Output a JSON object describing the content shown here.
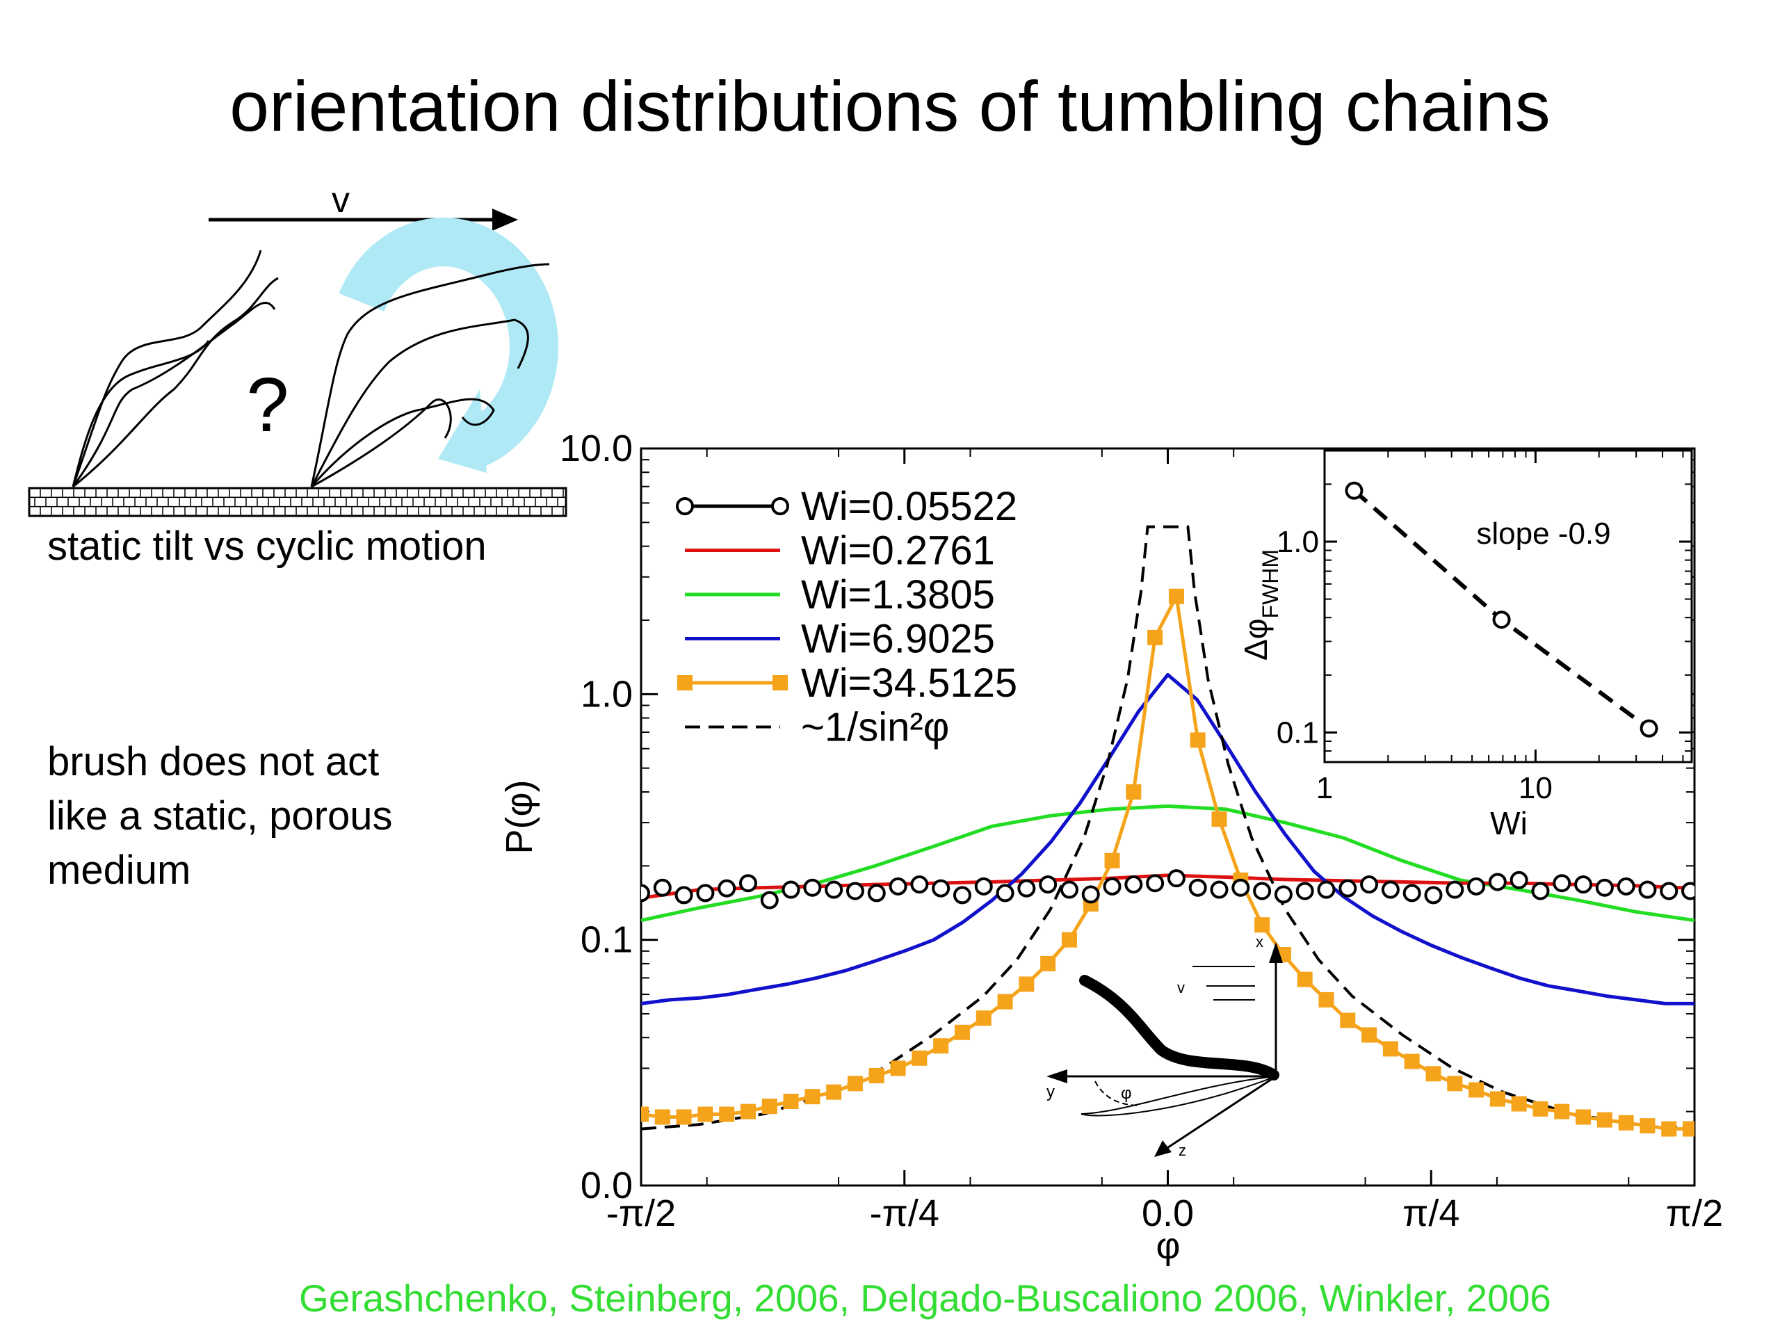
{
  "slide": {
    "title": "orientation distributions of tumbling chains",
    "sketch_arrow_label": "v",
    "sketch_question": "?",
    "sketch_caption": "static tilt vs cyclic motion",
    "note_lines": [
      "brush does not act",
      "like a static, porous",
      "medium"
    ],
    "citation": "Gerashchenko, Steinberg, 2006,  Delgado-Buscaliono 2006, Winkler, 2006"
  },
  "colors": {
    "black": "#000000",
    "red": "#dd1111",
    "green": "#22dd22",
    "blue": "#1111cc",
    "orange": "#f5a31a",
    "cyan_arrow": "#aee9f5",
    "citation_green": "#33dd33"
  },
  "chart_data": [
    {
      "type": "line",
      "title": "",
      "xlabel": "φ",
      "ylabel": "P(φ)",
      "xlim": [
        -1.5708,
        1.5708
      ],
      "ylim": [
        0.0,
        10.0
      ],
      "y_scale": "log",
      "x_ticks": [
        {
          "value": -1.5708,
          "label": "-π/2"
        },
        {
          "value": -0.7854,
          "label": "-π/4"
        },
        {
          "value": 0.0,
          "label": "0.0"
        },
        {
          "value": 0.7854,
          "label": "π/4"
        },
        {
          "value": 1.5708,
          "label": "π/2"
        }
      ],
      "y_ticks": [
        {
          "value": 0.01,
          "label": "0.0"
        },
        {
          "value": 0.1,
          "label": "0.1"
        },
        {
          "value": 1.0,
          "label": "1.0"
        },
        {
          "value": 10.0,
          "label": "10.0"
        }
      ],
      "legend_position": "top-left",
      "series": [
        {
          "name": "Wi=0.05522",
          "color": "#000000",
          "style": "circles",
          "legend_marker": "line-circle",
          "x": [
            -1.5708,
            -1.5069,
            -1.4431,
            -1.3792,
            -1.3153,
            -1.2515,
            -1.1876,
            -1.1238,
            -1.0599,
            -0.996,
            -0.9322,
            -0.8683,
            -0.8044,
            -0.7406,
            -0.6767,
            -0.6129,
            -0.549,
            -0.4851,
            -0.4213,
            -0.3574,
            -0.2935,
            -0.2297,
            -0.1658,
            -0.102,
            -0.0381,
            0.0258,
            0.0896,
            0.1535,
            0.2173,
            0.2812,
            0.3451,
            0.4089,
            0.4728,
            0.5367,
            0.6005,
            0.6644,
            0.7282,
            0.7921,
            0.856,
            0.9198,
            0.9837,
            1.0475,
            1.1114,
            1.1753,
            1.2391,
            1.303,
            1.3669,
            1.4307,
            1.4946,
            1.5584
          ],
          "y": [
            0.155,
            0.163,
            0.152,
            0.155,
            0.162,
            0.17,
            0.145,
            0.16,
            0.163,
            0.16,
            0.158,
            0.155,
            0.165,
            0.168,
            0.162,
            0.152,
            0.165,
            0.155,
            0.162,
            0.168,
            0.16,
            0.153,
            0.165,
            0.168,
            0.17,
            0.178,
            0.163,
            0.16,
            0.163,
            0.158,
            0.153,
            0.158,
            0.16,
            0.162,
            0.168,
            0.16,
            0.155,
            0.152,
            0.16,
            0.165,
            0.172,
            0.175,
            0.158,
            0.17,
            0.168,
            0.163,
            0.165,
            0.16,
            0.158,
            0.158
          ]
        },
        {
          "name": "Wi=0.2761",
          "color": "#dd1111",
          "style": "line",
          "legend_marker": "line",
          "x": [
            -1.5708,
            -1.3963,
            -1.2217,
            -1.0472,
            -0.8727,
            -0.6981,
            -0.5236,
            -0.3491,
            -0.1745,
            0.0,
            0.1745,
            0.3491,
            0.5236,
            0.6981,
            0.8727,
            1.0472,
            1.2217,
            1.3963,
            1.5708
          ],
          "y": [
            0.148,
            0.16,
            0.163,
            0.165,
            0.168,
            0.17,
            0.172,
            0.175,
            0.178,
            0.183,
            0.18,
            0.176,
            0.174,
            0.172,
            0.17,
            0.17,
            0.168,
            0.166,
            0.162
          ]
        },
        {
          "name": "Wi=1.3805",
          "color": "#22dd22",
          "style": "line",
          "legend_marker": "line",
          "x": [
            -1.5708,
            -1.3963,
            -1.2217,
            -1.0472,
            -0.8727,
            -0.6981,
            -0.5236,
            -0.3491,
            -0.1745,
            0.0,
            0.1745,
            0.3491,
            0.5236,
            0.6981,
            0.8727,
            1.0472,
            1.2217,
            1.3963,
            1.5708
          ],
          "y": [
            0.12,
            0.135,
            0.15,
            0.17,
            0.2,
            0.24,
            0.29,
            0.32,
            0.34,
            0.35,
            0.34,
            0.3,
            0.26,
            0.21,
            0.175,
            0.16,
            0.145,
            0.13,
            0.12
          ]
        },
        {
          "name": "Wi=6.9025",
          "color": "#1111cc",
          "style": "line",
          "legend_marker": "line",
          "x": [
            -1.5708,
            -1.4835,
            -1.3963,
            -1.309,
            -1.2217,
            -1.1345,
            -1.0472,
            -0.9599,
            -0.8727,
            -0.7854,
            -0.6981,
            -0.6109,
            -0.5236,
            -0.4363,
            -0.3491,
            -0.2618,
            -0.1745,
            -0.0873,
            0.0,
            0.0873,
            0.1745,
            0.2618,
            0.3491,
            0.4363,
            0.5236,
            0.6109,
            0.6981,
            0.7854,
            0.8727,
            0.9599,
            1.0472,
            1.1345,
            1.2217,
            1.309,
            1.3963,
            1.4835,
            1.5708
          ],
          "y": [
            0.055,
            0.057,
            0.058,
            0.06,
            0.063,
            0.066,
            0.07,
            0.075,
            0.082,
            0.09,
            0.1,
            0.118,
            0.145,
            0.185,
            0.25,
            0.36,
            0.55,
            0.85,
            1.2,
            0.95,
            0.62,
            0.4,
            0.27,
            0.19,
            0.15,
            0.125,
            0.108,
            0.095,
            0.085,
            0.077,
            0.07,
            0.065,
            0.062,
            0.059,
            0.057,
            0.055,
            0.055
          ]
        },
        {
          "name": "Wi=34.5125",
          "color": "#f5a31a",
          "style": "line-squares",
          "legend_marker": "line-square",
          "x": [
            -1.5708,
            -1.5069,
            -1.4431,
            -1.3792,
            -1.3153,
            -1.2515,
            -1.1876,
            -1.1238,
            -1.0599,
            -0.996,
            -0.9322,
            -0.8683,
            -0.8044,
            -0.7406,
            -0.6767,
            -0.6129,
            -0.549,
            -0.4851,
            -0.4213,
            -0.3574,
            -0.2935,
            -0.2297,
            -0.1658,
            -0.102,
            -0.0381,
            0.0258,
            0.0896,
            0.1535,
            0.2173,
            0.2812,
            0.3451,
            0.4089,
            0.4728,
            0.5367,
            0.6005,
            0.6644,
            0.7282,
            0.7921,
            0.856,
            0.9198,
            0.9837,
            1.0475,
            1.1114,
            1.1753,
            1.2391,
            1.303,
            1.3669,
            1.4307,
            1.4946,
            1.5584
          ],
          "y": [
            0.0195,
            0.019,
            0.019,
            0.0195,
            0.0195,
            0.02,
            0.021,
            0.022,
            0.023,
            0.024,
            0.026,
            0.028,
            0.03,
            0.033,
            0.037,
            0.042,
            0.048,
            0.056,
            0.066,
            0.08,
            0.1,
            0.14,
            0.21,
            0.4,
            1.7,
            2.5,
            0.65,
            0.31,
            0.175,
            0.115,
            0.087,
            0.069,
            0.057,
            0.047,
            0.041,
            0.036,
            0.032,
            0.0285,
            0.026,
            0.0245,
            0.0225,
            0.0215,
            0.0205,
            0.02,
            0.019,
            0.0185,
            0.018,
            0.0175,
            0.017,
            0.017
          ]
        },
        {
          "name": "~1/sin²φ",
          "color": "#000000",
          "style": "dashed",
          "legend_marker": "dashed",
          "x": [
            -1.5708,
            -1.4,
            -1.2,
            -1.0,
            -0.85,
            -0.7,
            -0.55,
            -0.45,
            -0.35,
            -0.25,
            -0.18,
            -0.12,
            -0.08,
            -0.06,
            0.06,
            0.08,
            0.12,
            0.18,
            0.25,
            0.35,
            0.45,
            0.55,
            0.7,
            0.85,
            1.0,
            1.2,
            1.4,
            1.5708
          ],
          "y": [
            0.017,
            0.0177,
            0.0196,
            0.024,
            0.03,
            0.041,
            0.059,
            0.083,
            0.133,
            0.26,
            0.52,
            1.15,
            2.6,
            4.8,
            4.8,
            2.6,
            1.15,
            0.52,
            0.26,
            0.133,
            0.083,
            0.059,
            0.041,
            0.03,
            0.024,
            0.0196,
            0.0177,
            0.017
          ]
        }
      ]
    },
    {
      "type": "line",
      "title": "",
      "xlabel": "Wi",
      "ylabel": "Δφ",
      "ylabel_subscript": "FWHM",
      "x_scale": "log",
      "y_scale": "log",
      "xlim": [
        1,
        55
      ],
      "ylim": [
        0.07,
        3.0
      ],
      "x_ticks": [
        {
          "value": 1,
          "label": "1"
        },
        {
          "value": 10,
          "label": "10"
        }
      ],
      "y_ticks": [
        {
          "value": 0.1,
          "label": "0.1"
        },
        {
          "value": 1.0,
          "label": "1.0"
        }
      ],
      "annotation": "slope -0.9",
      "series": [
        {
          "name": "",
          "style": "circles-dashed",
          "color": "#000000",
          "x": [
            1.3805,
            6.9025,
            34.5125
          ],
          "y": [
            1.85,
            0.39,
            0.105
          ]
        }
      ]
    }
  ]
}
